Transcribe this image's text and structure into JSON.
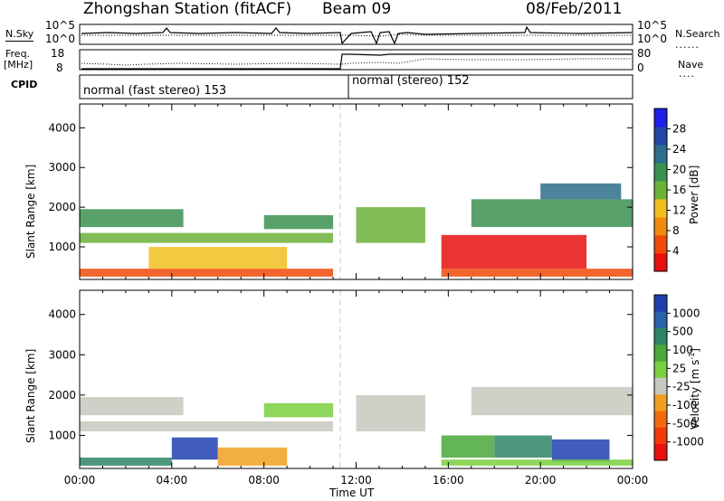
{
  "header": {
    "station_title": "Zhongshan Station (fitACF)",
    "beam": "Beam 09",
    "date": "08/Feb/2011"
  },
  "noise_panel": {
    "left_label": "N.Sky",
    "right_label": "N.Search",
    "left_ticks": [
      "10^5",
      "10^0"
    ],
    "right_ticks": [
      "10^5",
      "10^0"
    ]
  },
  "freq_panel": {
    "left_label": "Freq.",
    "left_unit": "[MHz]",
    "right_label": "Nave",
    "left_ticks": [
      "18",
      "8"
    ],
    "right_ticks": [
      "80",
      "0"
    ]
  },
  "cpid_panel": {
    "label": "CPID",
    "mode_1": "normal (fast stereo) 153",
    "mode_2": "normal (stereo) 152"
  },
  "colors": {
    "power_scale": [
      "#1f1fe6",
      "#2246a6",
      "#2e6e8a",
      "#3b9150",
      "#6bb23a",
      "#f0c020",
      "#f08a10",
      "#f04a08",
      "#e61010"
    ],
    "velocity_scale": [
      "#1f3fb0",
      "#2a62a8",
      "#2e8468",
      "#49a83a",
      "#7ad040",
      "#c8c8c0",
      "#f0a020",
      "#f06a10",
      "#f03a0a",
      "#e61010"
    ]
  },
  "chart_data": [
    {
      "type": "heatmap",
      "name": "power",
      "xlabel": "Time UT",
      "ylabel": "Slant Range [km]",
      "x_ticks": [
        "00:00",
        "04:00",
        "08:00",
        "12:00",
        "16:00",
        "20:00",
        "00:00"
      ],
      "y_ticks": [
        1000,
        2000,
        3000,
        4000
      ],
      "ylim": [
        180,
        4600
      ],
      "xlim_hours": [
        0,
        24
      ],
      "colorbar": {
        "label": "Power [dB]",
        "ticks": [
          4,
          8,
          12,
          16,
          20,
          24,
          28
        ],
        "range": [
          0,
          32
        ]
      },
      "regions": [
        {
          "t0": 0.0,
          "t1": 4.5,
          "r0": 1500,
          "r1": 1950,
          "level": 3
        },
        {
          "t0": 0.0,
          "t1": 11.0,
          "r0": 1100,
          "r1": 1350,
          "level": 4
        },
        {
          "t0": 0.0,
          "t1": 11.0,
          "r0": 250,
          "r1": 450,
          "level": 7
        },
        {
          "t0": 3.0,
          "t1": 9.0,
          "r0": 450,
          "r1": 1000,
          "level": 5
        },
        {
          "t0": 8.0,
          "t1": 11.0,
          "r0": 1450,
          "r1": 1800,
          "level": 3
        },
        {
          "t0": 12.0,
          "t1": 15.0,
          "r0": 1100,
          "r1": 2000,
          "level": 4
        },
        {
          "t0": 15.7,
          "t1": 22.0,
          "r0": 450,
          "r1": 1300,
          "level": 8
        },
        {
          "t0": 15.7,
          "t1": 24.0,
          "r0": 250,
          "r1": 450,
          "level": 7
        },
        {
          "t0": 17.0,
          "t1": 24.0,
          "r0": 1500,
          "r1": 2200,
          "level": 3
        },
        {
          "t0": 20.0,
          "t1": 23.5,
          "r0": 2200,
          "r1": 2600,
          "level": 2
        }
      ]
    },
    {
      "type": "heatmap",
      "name": "velocity",
      "xlabel": "Time UT",
      "ylabel": "Slant Range [km]",
      "x_ticks": [
        "00:00",
        "04:00",
        "08:00",
        "12:00",
        "16:00",
        "20:00",
        "00:00"
      ],
      "y_ticks": [
        1000,
        2000,
        3000,
        4000
      ],
      "ylim": [
        180,
        4600
      ],
      "xlim_hours": [
        0,
        24
      ],
      "colorbar": {
        "label": "Velocity [m s-1]",
        "label_main": "Velocity [m s",
        "label_exp": "-1",
        "label_close": "]",
        "ticks": [
          "1000",
          "500",
          "100",
          "25",
          "-25",
          "-100",
          "-500",
          "-1000"
        ]
      },
      "regions": [
        {
          "t0": 0.0,
          "t1": 4.5,
          "r0": 1500,
          "r1": 1950,
          "level": 5
        },
        {
          "t0": 0.0,
          "t1": 11.0,
          "r0": 1100,
          "r1": 1350,
          "level": 5
        },
        {
          "t0": 0.0,
          "t1": 4.0,
          "r0": 250,
          "r1": 450,
          "level": 2
        },
        {
          "t0": 4.0,
          "t1": 6.0,
          "r0": 400,
          "r1": 950,
          "level": 0
        },
        {
          "t0": 6.0,
          "t1": 9.0,
          "r0": 250,
          "r1": 700,
          "level": 6
        },
        {
          "t0": 8.0,
          "t1": 11.0,
          "r0": 1450,
          "r1": 1800,
          "level": 4
        },
        {
          "t0": 12.0,
          "t1": 15.0,
          "r0": 1100,
          "r1": 2000,
          "level": 5
        },
        {
          "t0": 15.7,
          "t1": 18.0,
          "r0": 450,
          "r1": 1000,
          "level": 3
        },
        {
          "t0": 18.0,
          "t1": 20.5,
          "r0": 450,
          "r1": 1000,
          "level": 2
        },
        {
          "t0": 20.5,
          "t1": 23.0,
          "r0": 350,
          "r1": 900,
          "level": 0
        },
        {
          "t0": 15.7,
          "t1": 24.0,
          "r0": 250,
          "r1": 400,
          "level": 4
        },
        {
          "t0": 17.0,
          "t1": 24.0,
          "r0": 1500,
          "r1": 2200,
          "level": 5
        }
      ]
    }
  ]
}
